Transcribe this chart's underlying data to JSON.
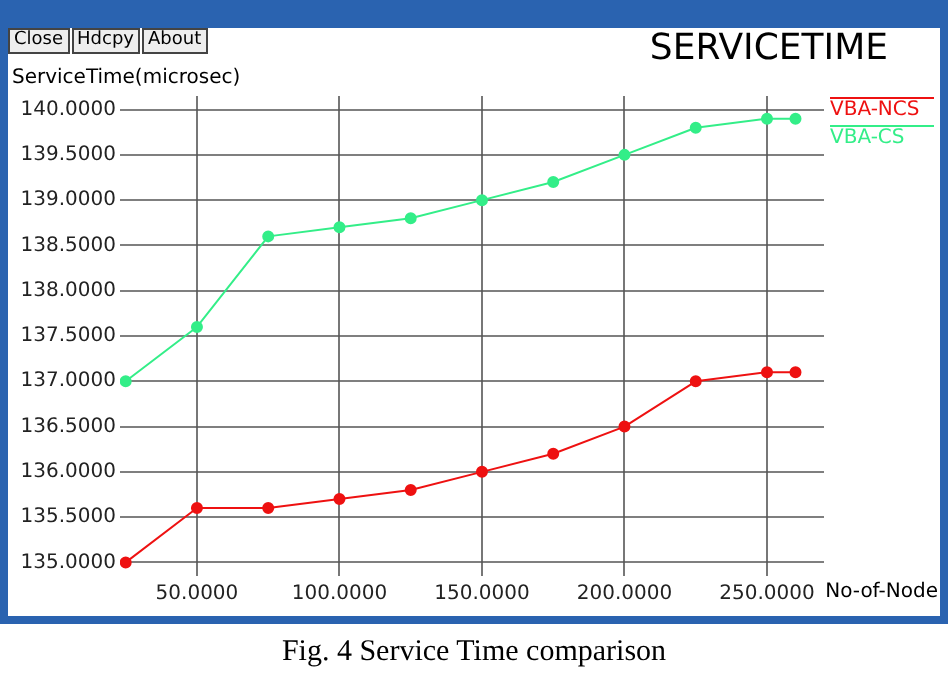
{
  "chart_data": {
    "type": "line",
    "title": "SERVICETIME",
    "ylabel": "ServiceTime(microsec)",
    "xlabel": "No-of-Node",
    "x": [
      25,
      50,
      75,
      100,
      125,
      150,
      175,
      200,
      225,
      250,
      260
    ],
    "series": [
      {
        "name": "VBA-NCS",
        "color": "#ee1111",
        "values": [
          135.0,
          135.6,
          135.6,
          135.7,
          135.8,
          136.0,
          136.2,
          136.5,
          137.0,
          137.1,
          137.1
        ]
      },
      {
        "name": "VBA-CS",
        "color": "#33ee88",
        "values": [
          137.0,
          137.6,
          138.6,
          138.7,
          138.8,
          139.0,
          139.2,
          139.5,
          139.8,
          139.9,
          139.9
        ]
      }
    ],
    "xlim": [
      23,
      270
    ],
    "ylim": [
      134.85,
      140.15
    ],
    "xticks": [
      {
        "value": 50,
        "label": "50.0000"
      },
      {
        "value": 100,
        "label": "100.0000"
      },
      {
        "value": 150,
        "label": "150.0000"
      },
      {
        "value": 200,
        "label": "200.0000"
      },
      {
        "value": 250,
        "label": "250.0000"
      }
    ],
    "yticks": [
      {
        "value": 135,
        "label": "135.0000"
      },
      {
        "value": 135.5,
        "label": "135.5000"
      },
      {
        "value": 136,
        "label": "136.0000"
      },
      {
        "value": 136.5,
        "label": "136.5000"
      },
      {
        "value": 137,
        "label": "137.0000"
      },
      {
        "value": 137.5,
        "label": "137.5000"
      },
      {
        "value": 138,
        "label": "138.0000"
      },
      {
        "value": 138.5,
        "label": "138.5000"
      },
      {
        "value": 139,
        "label": "139.0000"
      },
      {
        "value": 139.5,
        "label": "139.5000"
      },
      {
        "value": 140,
        "label": "140.0000"
      }
    ],
    "grid": true,
    "legend": "top right",
    "marker": "circle",
    "line_style": "solid",
    "annotations": [
      "Fig. 4 Service Time comparison",
      "Close",
      "Hdcpy",
      "About"
    ]
  }
}
